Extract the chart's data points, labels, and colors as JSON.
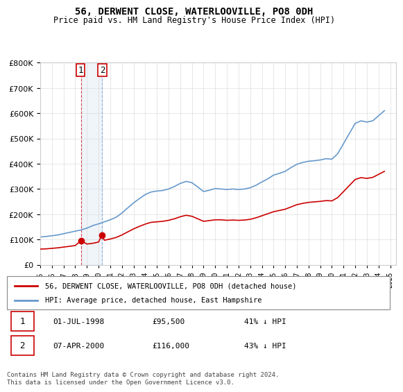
{
  "title": "56, DERWENT CLOSE, WATERLOOVILLE, PO8 0DH",
  "subtitle": "Price paid vs. HM Land Registry's House Price Index (HPI)",
  "legend_line1": "56, DERWENT CLOSE, WATERLOOVILLE, PO8 0DH (detached house)",
  "legend_line2": "HPI: Average price, detached house, East Hampshire",
  "transactions": [
    {
      "id": 1,
      "date": "01-JUL-1998",
      "price": 95500,
      "pct": "41% ↓ HPI",
      "date_num": 1998.5
    },
    {
      "id": 2,
      "date": "07-APR-2000",
      "price": 116000,
      "pct": "43% ↓ HPI",
      "date_num": 2000.27
    }
  ],
  "footer": "Contains HM Land Registry data © Crown copyright and database right 2024.\nThis data is licensed under the Open Government Licence v3.0.",
  "price_color": "#cc0000",
  "hpi_color": "#6699cc",
  "marker_box_color": "#cc0000",
  "ylim": [
    0,
    800000
  ],
  "xlim_start": 1995.0,
  "xlim_end": 2025.5,
  "background_color": "#ffffff",
  "grid_color": "#dddddd"
}
